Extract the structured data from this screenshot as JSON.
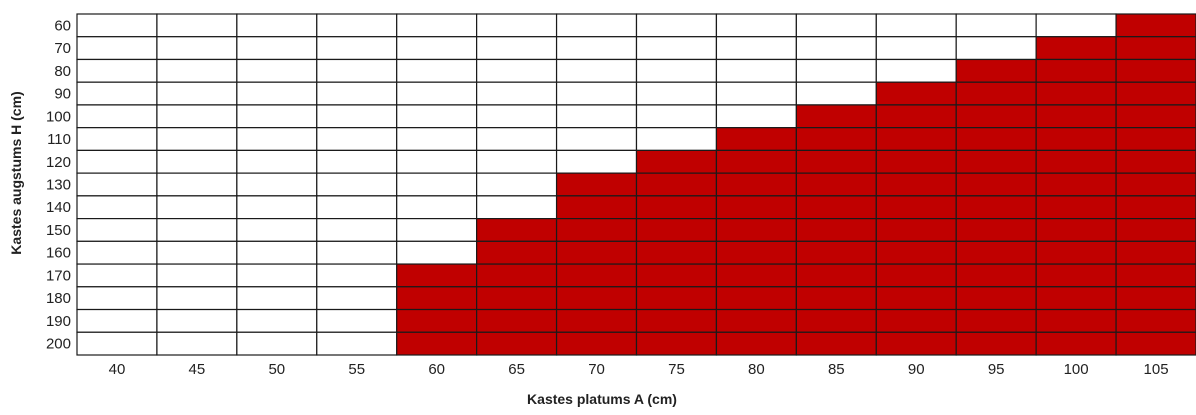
{
  "chart_data": {
    "type": "heatmap",
    "title": "",
    "xlabel": "Kastes platums A (cm)",
    "ylabel": "Kastes augstums H (cm)",
    "x_categories": [
      40,
      45,
      50,
      55,
      60,
      65,
      70,
      75,
      80,
      85,
      90,
      95,
      100,
      105
    ],
    "y_categories": [
      60,
      70,
      80,
      90,
      100,
      110,
      120,
      130,
      140,
      150,
      160,
      170,
      180,
      190,
      200
    ],
    "min_filled_height_by_width": [
      null,
      null,
      null,
      null,
      170,
      150,
      130,
      120,
      110,
      100,
      90,
      80,
      70,
      60
    ],
    "colors": {
      "filled": "#c00000",
      "empty": "#ffffff",
      "grid": "#1a1a1a"
    },
    "grid": true,
    "legend": "none"
  }
}
